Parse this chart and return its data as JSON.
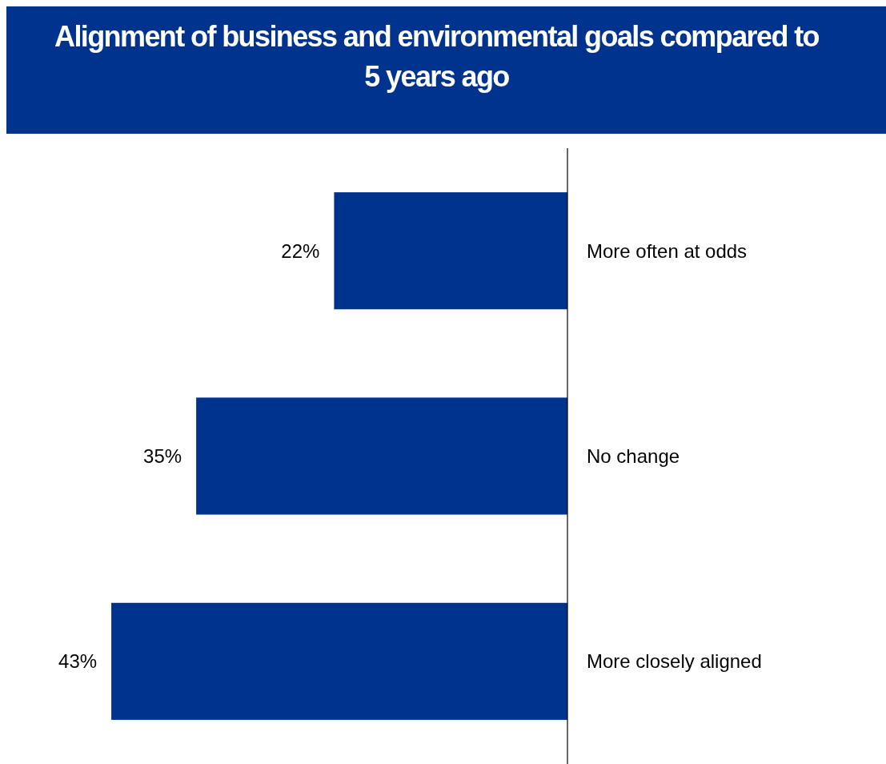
{
  "chart_data": {
    "type": "bar",
    "orientation": "horizontal",
    "title": "Alignment of business and environmental goals compared to 5 years ago",
    "categories": [
      "More often at odds",
      "No change",
      "More closely aligned"
    ],
    "values": [
      22,
      35,
      43
    ],
    "color": "#00338d",
    "value_labels": [
      "22%",
      "35%",
      "43%"
    ],
    "tick_labels": "y"
  }
}
